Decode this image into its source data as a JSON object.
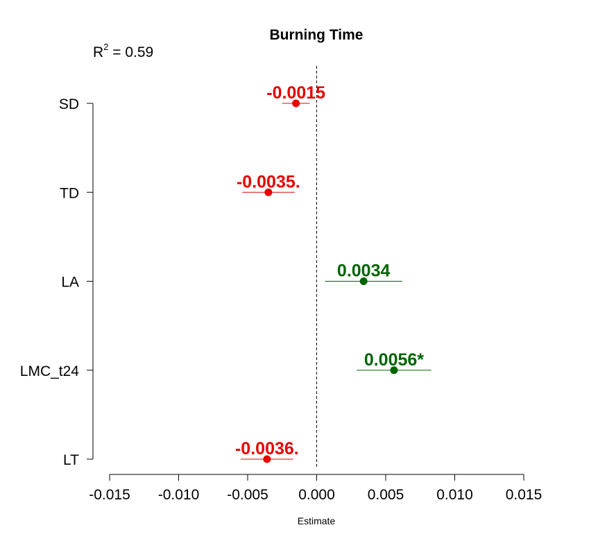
{
  "chart_data": {
    "type": "scatter",
    "title": "Burning Time",
    "r2_label": "R",
    "r2_superscript": "2",
    "r2_value": " = 0.59",
    "xlabel": "Estimate",
    "ylabel": "",
    "xlim": [
      -0.015,
      0.015
    ],
    "x_ticks": [
      -0.015,
      -0.01,
      -0.005,
      0.0,
      0.005,
      0.01,
      0.015
    ],
    "x_tick_labels": [
      "-0.015",
      "-0.010",
      "-0.005",
      "0.000",
      "0.005",
      "0.010",
      "0.015"
    ],
    "reference_line": 0,
    "grid": false,
    "colors": {
      "negative": "#e60000",
      "positive": "#006400"
    },
    "points": [
      {
        "name": "SD",
        "estimate": -0.0015,
        "ci_low": -0.0025,
        "ci_high": -0.0005,
        "label": "-0.0015",
        "sign": "negative"
      },
      {
        "name": "TD",
        "estimate": -0.0035,
        "ci_low": -0.0054,
        "ci_high": -0.0016,
        "label": "-0.0035.",
        "sign": "negative"
      },
      {
        "name": "LA",
        "estimate": 0.0034,
        "ci_low": 0.0006,
        "ci_high": 0.0062,
        "label": "0.0034",
        "sign": "positive"
      },
      {
        "name": "LMC_t24",
        "estimate": 0.0056,
        "ci_low": 0.0029,
        "ci_high": 0.0083,
        "label": "0.0056*",
        "sign": "positive"
      },
      {
        "name": "LT",
        "estimate": -0.0036,
        "ci_low": -0.0055,
        "ci_high": -0.0017,
        "label": "-0.0036.",
        "sign": "negative"
      }
    ]
  }
}
